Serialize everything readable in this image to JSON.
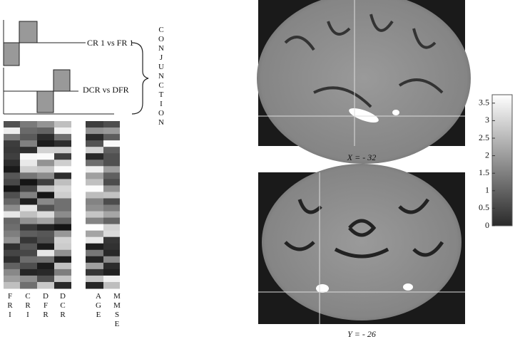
{
  "contrasts": [
    {
      "label": "CR 1 vs FR 1"
    },
    {
      "label": "DCR vs DFR"
    }
  ],
  "conjunction": "CONJUNCTION",
  "columns": [
    "FRI",
    "CRI",
    "DFR",
    "DCR",
    "AGE",
    "MMSE"
  ],
  "slices": [
    {
      "caption": "X = - 32"
    },
    {
      "caption": "Y = - 26"
    }
  ],
  "colorbar": {
    "lim": [
      0,
      3.74
    ],
    "ticks": [
      0,
      0.5,
      1,
      1.5,
      2,
      2.5,
      3,
      3.5
    ]
  }
}
